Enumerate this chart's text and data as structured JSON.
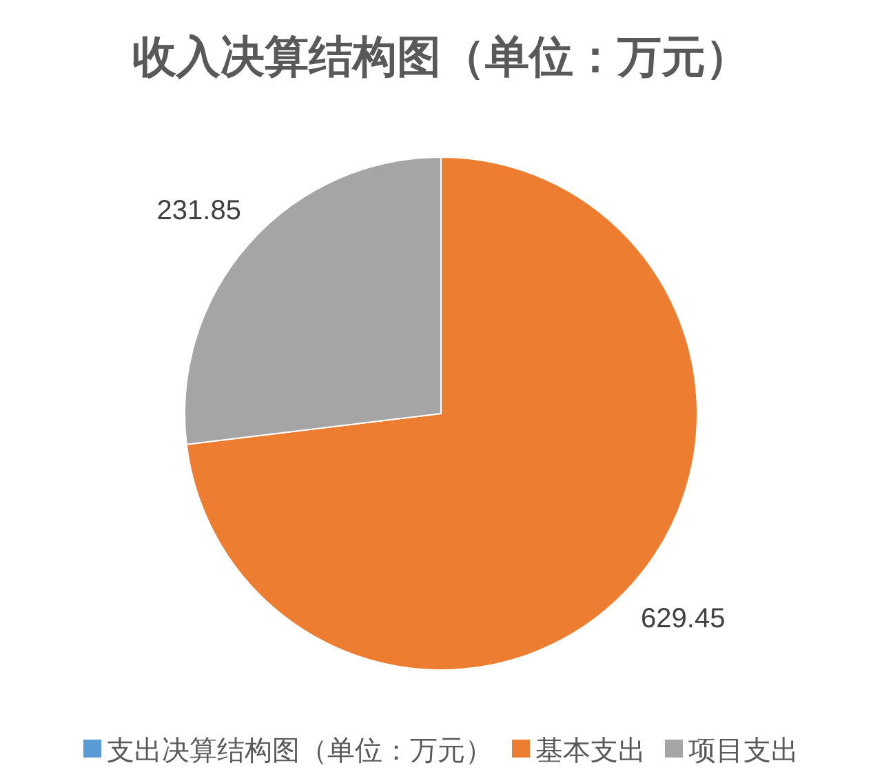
{
  "chart_data": {
    "type": "pie",
    "title": "收入决算结构图（单位：万元）",
    "categories": [
      "支出决算结构图（单位：万元）",
      "基本支出",
      "项目支出"
    ],
    "values": [
      null,
      629.45,
      231.85
    ],
    "colors": [
      "#5b9bd5",
      "#ed7d31",
      "#a5a5a5"
    ],
    "data_labels": true,
    "legend": "bottom"
  }
}
